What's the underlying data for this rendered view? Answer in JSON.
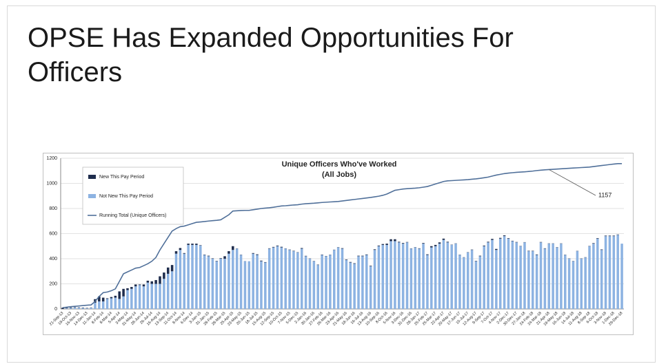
{
  "slide": {
    "title": "OPSE Has Expanded Opportunities For Officers"
  },
  "chart_data": {
    "type": "bar",
    "stacked": true,
    "title": "Unique Officers Who've Worked",
    "subtitle": "(All Jobs)",
    "categories": [
      "21-Sep-13",
      null,
      "19-Oct-13",
      null,
      "16-Nov-13",
      null,
      "14-Dec-13",
      null,
      "11-Jan-14",
      null,
      "8-Feb-14",
      null,
      "8-Mar-14",
      null,
      "5-Apr-14",
      null,
      "3-May-14",
      null,
      "31-May-14",
      null,
      "28-Jun-14",
      null,
      "26-Jul-14",
      null,
      "16-Aug-14",
      null,
      "13-Sep-14",
      null,
      "11-Oct-14",
      null,
      "8-Nov-14",
      null,
      "6-Dec-14",
      null,
      "3-Jan-15",
      null,
      "31-Jan-15",
      null,
      "28-Feb-15",
      null,
      "28-Mar-15",
      null,
      "25-Apr-15",
      null,
      "23-May-15",
      null,
      "20-Jun-15",
      null,
      "18-Jul-15",
      null,
      "15-Aug-15",
      null,
      "12-Sep-15",
      null,
      "10-Oct-15",
      null,
      "7-Nov-15",
      null,
      "5-Dec-15",
      null,
      "2-Jan-16",
      null,
      "30-Jan-16",
      null,
      "27-Feb-16",
      null,
      "26-Mar-16",
      null,
      "23-Apr-16",
      null,
      "21-May-16",
      null,
      "18-Jun-16",
      null,
      "16-Jul-16",
      null,
      "13-Aug-16",
      null,
      "10-Sep-16",
      null,
      "8-Oct-16",
      null,
      "5-Nov-16",
      null,
      "3-Dec-16",
      null,
      "31-Dec-16",
      null,
      "28-Jan-17",
      null,
      "25-Feb-17",
      null,
      "25-Mar-17",
      null,
      "22-Apr-17",
      null,
      "20-May-17",
      null,
      "17-Jun-17",
      null,
      "15-Jul-17",
      null,
      "12-Aug-17",
      null,
      "9-Sep-17",
      null,
      "7-Oct-17",
      null,
      "4-Nov-17",
      null,
      "2-Dec-17",
      null,
      "30-Dec-17",
      null,
      "27-Jan-18",
      null,
      "24-Feb-18",
      null,
      "24-Mar-18",
      null,
      "21-Apr-18",
      null,
      "19-May-18",
      null,
      "16-Jun-18",
      null,
      "14-Jul-18",
      null,
      "11-Aug-18",
      null,
      "8-Sep-18",
      null,
      "6-Oct-18",
      null,
      "3-Nov-18",
      null,
      "1-Dec-18",
      null,
      "29-Dec-18"
    ],
    "series": [
      {
        "name": "New This Pay Period",
        "color": "#1f2d4d",
        "values": [
          10,
          4,
          4,
          3,
          3,
          3,
          3,
          2,
          28,
          40,
          30,
          5,
          10,
          15,
          60,
          60,
          15,
          15,
          15,
          5,
          15,
          15,
          20,
          30,
          60,
          50,
          50,
          50,
          20,
          15,
          5,
          10,
          10,
          10,
          3,
          3,
          4,
          3,
          3,
          4,
          20,
          20,
          30,
          2,
          2,
          1,
          0,
          5,
          5,
          5,
          3,
          3,
          4,
          5,
          5,
          2,
          3,
          3,
          2,
          5,
          3,
          2,
          2,
          3,
          3,
          2,
          2,
          2,
          2,
          4,
          4,
          4,
          4,
          4,
          4,
          4,
          4,
          5,
          5,
          7,
          10,
          15,
          15,
          5,
          5,
          3,
          2,
          2,
          3,
          5,
          5,
          10,
          10,
          10,
          10,
          5,
          2,
          2,
          2,
          2,
          2,
          3,
          3,
          4,
          5,
          5,
          8,
          8,
          6,
          6,
          4,
          3,
          3,
          2,
          2,
          3,
          3,
          4,
          3,
          3,
          2,
          2,
          2,
          2,
          2,
          2,
          2,
          2,
          2,
          2,
          2,
          4,
          4,
          4,
          4,
          4,
          4,
          3,
          0
        ]
      },
      {
        "name": "Not New This Pay Period",
        "color": "#8db3e2",
        "values": [
          0,
          5,
          8,
          12,
          10,
          8,
          5,
          10,
          50,
          60,
          60,
          80,
          85,
          90,
          80,
          100,
          150,
          160,
          180,
          190,
          180,
          210,
          200,
          200,
          200,
          240,
          280,
          300,
          440,
          470,
          440,
          510,
          510,
          510,
          505,
          430,
          420,
          400,
          380,
          400,
          400,
          440,
          470,
          480,
          430,
          380,
          380,
          440,
          430,
          380,
          370,
          480,
          490,
          500,
          490,
          480,
          470,
          460,
          450,
          480,
          420,
          400,
          380,
          350,
          430,
          420,
          430,
          470,
          490,
          480,
          390,
          370,
          360,
          420,
          420,
          430,
          340,
          470,
          500,
          510,
          510,
          540,
          540,
          530,
          520,
          530,
          480,
          490,
          480,
          520,
          430,
          490,
          500,
          520,
          550,
          530,
          510,
          520,
          430,
          410,
          450,
          470,
          380,
          420,
          500,
          530,
          550,
          470,
          560,
          580,
          560,
          540,
          530,
          500,
          530,
          460,
          460,
          430,
          530,
          480,
          520,
          520,
          490,
          520,
          430,
          400,
          380,
          460,
          400,
          410,
          500,
          520,
          560,
          470,
          580,
          580,
          580,
          590,
          520
        ]
      },
      {
        "name": "Running Total (Unique Officers)",
        "type": "line",
        "color": "#4f6f99",
        "values": [
          10,
          14,
          18,
          21,
          24,
          27,
          30,
          32,
          60,
          100,
          130,
          135,
          145,
          160,
          220,
          280,
          295,
          310,
          325,
          330,
          345,
          360,
          380,
          410,
          470,
          520,
          570,
          620,
          640,
          655,
          660,
          670,
          680,
          690,
          693,
          696,
          700,
          703,
          706,
          710,
          730,
          750,
          780,
          782,
          784,
          785,
          785,
          790,
          795,
          800,
          803,
          806,
          810,
          815,
          820,
          822,
          825,
          828,
          830,
          835,
          838,
          840,
          842,
          845,
          848,
          850,
          852,
          854,
          856,
          860,
          864,
          868,
          872,
          876,
          880,
          884,
          888,
          893,
          898,
          905,
          915,
          930,
          945,
          950,
          955,
          958,
          960,
          962,
          965,
          970,
          975,
          985,
          995,
          1005,
          1015,
          1020,
          1022,
          1024,
          1026,
          1028,
          1030,
          1033,
          1036,
          1040,
          1045,
          1050,
          1058,
          1066,
          1072,
          1078,
          1082,
          1085,
          1088,
          1090,
          1092,
          1095,
          1098,
          1102,
          1105,
          1108,
          1110,
          1112,
          1114,
          1116,
          1118,
          1120,
          1122,
          1124,
          1126,
          1128,
          1130,
          1134,
          1138,
          1142,
          1146,
          1150,
          1154,
          1157,
          1157
        ]
      }
    ],
    "ylim": [
      0,
      1200
    ],
    "yticks": [
      0,
      200,
      400,
      600,
      800,
      1000,
      1200
    ],
    "grid": true,
    "legend": "upper left",
    "annotations": [
      {
        "text": "1157"
      }
    ]
  }
}
